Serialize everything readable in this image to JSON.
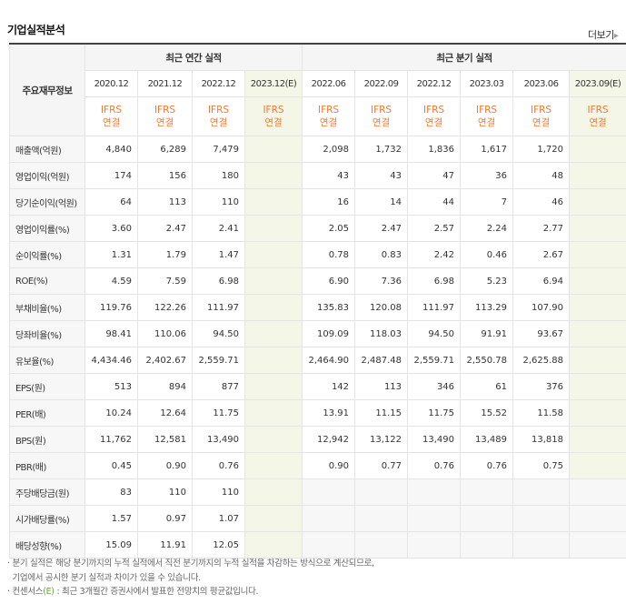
{
  "title": "기업실적분석",
  "more_label": "더보기",
  "more_arrow": "▸",
  "header": {
    "row_label": "주요재무정보",
    "annual_label": "최근 연간 실적",
    "quarter_label": "최근 분기 실적",
    "annual_dates": [
      "2020.12",
      "2021.12",
      "2022.12",
      "2023.12(E)"
    ],
    "quarter_dates": [
      "2022.06",
      "2022.09",
      "2022.12",
      "2023.03",
      "2023.06",
      "2023.09(E)"
    ],
    "ifrs_line1": "IFRS",
    "ifrs_line2": "연결"
  },
  "rows": [
    {
      "label": "매출액(억원)",
      "annual": [
        "4,840",
        "6,289",
        "7,479",
        ""
      ],
      "quarter": [
        "2,098",
        "1,732",
        "1,836",
        "1,617",
        "1,720",
        ""
      ]
    },
    {
      "label": "영업이익(억원)",
      "annual": [
        "174",
        "156",
        "180",
        ""
      ],
      "quarter": [
        "43",
        "43",
        "47",
        "36",
        "48",
        ""
      ]
    },
    {
      "label": "당기순이익(억원)",
      "annual": [
        "64",
        "113",
        "110",
        ""
      ],
      "quarter": [
        "16",
        "14",
        "44",
        "7",
        "46",
        ""
      ]
    },
    {
      "label": "영업이익률(%)",
      "annual": [
        "3.60",
        "2.47",
        "2.41",
        ""
      ],
      "quarter": [
        "2.05",
        "2.47",
        "2.57",
        "2.24",
        "2.77",
        ""
      ]
    },
    {
      "label": "순이익률(%)",
      "annual": [
        "1.31",
        "1.79",
        "1.47",
        ""
      ],
      "quarter": [
        "0.78",
        "0.83",
        "2.42",
        "0.46",
        "2.67",
        ""
      ]
    },
    {
      "label": "ROE(%)",
      "annual": [
        "4.59",
        "7.59",
        "6.98",
        ""
      ],
      "quarter": [
        "6.90",
        "7.36",
        "6.98",
        "5.23",
        "6.94",
        ""
      ]
    },
    {
      "label": "부채비율(%)",
      "annual": [
        "119.76",
        "122.26",
        "111.97",
        ""
      ],
      "quarter": [
        "135.83",
        "120.08",
        "111.97",
        "113.29",
        "107.90",
        ""
      ]
    },
    {
      "label": "당좌비율(%)",
      "annual": [
        "98.41",
        "110.06",
        "94.50",
        ""
      ],
      "quarter": [
        "109.09",
        "118.03",
        "94.50",
        "91.91",
        "93.67",
        ""
      ]
    },
    {
      "label": "유보율(%)",
      "annual": [
        "4,434.46",
        "2,402.67",
        "2,559.71",
        ""
      ],
      "quarter": [
        "2,464.90",
        "2,487.48",
        "2,559.71",
        "2,550.78",
        "2,625.88",
        ""
      ]
    },
    {
      "label": "EPS(원)",
      "annual": [
        "513",
        "894",
        "877",
        ""
      ],
      "quarter": [
        "142",
        "113",
        "346",
        "61",
        "376",
        ""
      ]
    },
    {
      "label": "PER(배)",
      "annual": [
        "10.24",
        "12.64",
        "11.75",
        ""
      ],
      "quarter": [
        "13.91",
        "11.15",
        "11.75",
        "15.52",
        "11.58",
        ""
      ]
    },
    {
      "label": "BPS(원)",
      "annual": [
        "11,762",
        "12,581",
        "13,490",
        ""
      ],
      "quarter": [
        "12,942",
        "13,122",
        "13,490",
        "13,489",
        "13,818",
        ""
      ]
    },
    {
      "label": "PBR(배)",
      "annual": [
        "0.45",
        "0.90",
        "0.76",
        ""
      ],
      "quarter": [
        "0.90",
        "0.77",
        "0.76",
        "0.76",
        "0.75",
        ""
      ]
    },
    {
      "label": "주당배당금(원)",
      "annual": [
        "83",
        "110",
        "110",
        ""
      ],
      "quarter": [
        "",
        "",
        "",
        "",
        "",
        ""
      ]
    },
    {
      "label": "시가배당률(%)",
      "annual": [
        "1.57",
        "0.97",
        "1.07",
        ""
      ],
      "quarter": [
        "",
        "",
        "",
        "",
        "",
        ""
      ]
    },
    {
      "label": "배당성향(%)",
      "annual": [
        "15.09",
        "11.91",
        "12.05",
        ""
      ],
      "quarter": [
        "",
        "",
        "",
        "",
        "",
        ""
      ]
    }
  ],
  "group_starts": [
    0,
    3,
    6,
    9,
    13
  ],
  "notes": {
    "line1": "· 분기 실적은 해당 분기까지의 누적 실적에서 직전 분기까지의 누적 실적을 차감하는 방식으로 계산되므로,",
    "line2": "  기업에서 공시한 분기 실적과 차이가 있을 수 있습니다.",
    "line3_prefix": "· 컨센서스",
    "line3_e": "(E)",
    "line3_suffix": " : 최근 3개월간 증권사에서 발표한 전망치의 평균값입니다."
  },
  "colors": {
    "ifrs": "#ec7b36",
    "estimate_bg": "#f4f7e8",
    "header_bg": "#f5f5f5"
  }
}
